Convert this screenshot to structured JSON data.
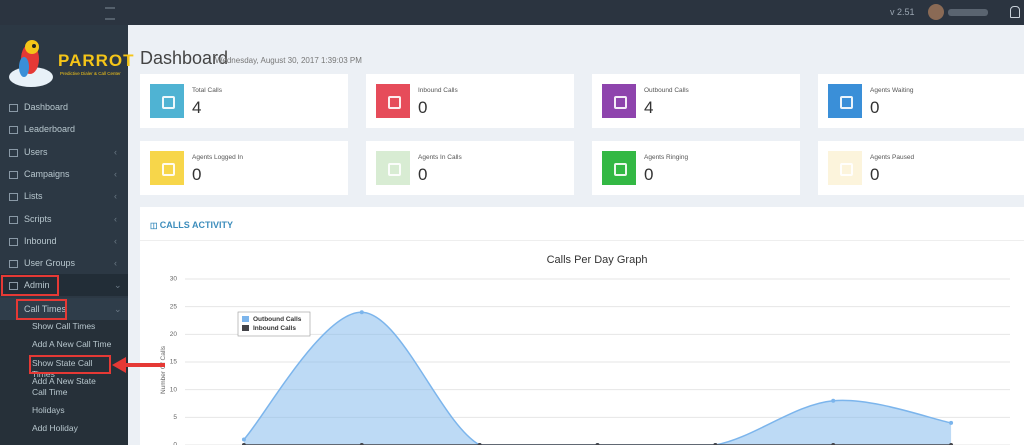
{
  "topbar": {
    "version": "v 2.51"
  },
  "sidebar": {
    "brand": "PARROT",
    "tagline": "Predictive Dialer & Call Center",
    "menu": [
      {
        "label": "Dashboard"
      },
      {
        "label": "Leaderboard"
      },
      {
        "label": "Users",
        "has_submenu": true
      },
      {
        "label": "Campaigns",
        "has_submenu": true
      },
      {
        "label": "Lists",
        "has_submenu": true
      },
      {
        "label": "Scripts",
        "has_submenu": true
      },
      {
        "label": "Inbound",
        "has_submenu": true
      },
      {
        "label": "User Groups",
        "has_submenu": true
      },
      {
        "label": "Admin",
        "has_submenu": true,
        "open": true,
        "highlighted": true
      }
    ],
    "submenu": {
      "label": "Call Times",
      "highlighted": true,
      "items": [
        {
          "label": "Show Call Times"
        },
        {
          "label": "Add A New Call Time"
        },
        {
          "label": "Show State Call Times",
          "highlighted": true
        },
        {
          "label": "Add A New State Call Time"
        },
        {
          "label": "Holidays"
        },
        {
          "label": "Add Holiday"
        }
      ]
    }
  },
  "header": {
    "title": "Dashboard",
    "date": "Wednesday, August 30, 2017 1:39:03 PM"
  },
  "cards": [
    {
      "label": "Total Calls",
      "value": 4,
      "color": "#4fb3d3"
    },
    {
      "label": "Inbound Calls",
      "value": 0,
      "color": "#e64c5a"
    },
    {
      "label": "Outbound Calls",
      "value": 4,
      "color": "#8e44ad"
    },
    {
      "label": "Agents Waiting",
      "value": 0,
      "color": "#3a8fd8"
    },
    {
      "label": "Agents Logged In",
      "value": 0,
      "color": "#f7d64a"
    },
    {
      "label": "Agents In Calls",
      "value": 0,
      "color": "#d8ecd3"
    },
    {
      "label": "Agents Ringing",
      "value": 0,
      "color": "#33b844"
    },
    {
      "label": "Agents Paused",
      "value": 0,
      "color": "#fcf4dc"
    }
  ],
  "panel": {
    "title": "CALLS ACTIVITY"
  },
  "chart_data": {
    "type": "areaspline",
    "title": "Calls Per Day Graph",
    "y_label": "Number Of Calls",
    "categories": [
      null,
      null,
      null,
      null,
      null,
      null,
      null
    ],
    "series": [
      {
        "name": "Outbound Calls",
        "color": "#7cb5ec",
        "values": [
          1,
          24,
          0,
          0,
          0,
          8,
          4
        ]
      },
      {
        "name": "Inbound Calls",
        "color": "#434348",
        "values": [
          0,
          0,
          0,
          0,
          0,
          0,
          0
        ]
      }
    ],
    "ylim": [
      0,
      30
    ],
    "yticks": [
      0,
      5,
      10,
      15,
      20,
      25,
      30
    ],
    "grid": true
  }
}
